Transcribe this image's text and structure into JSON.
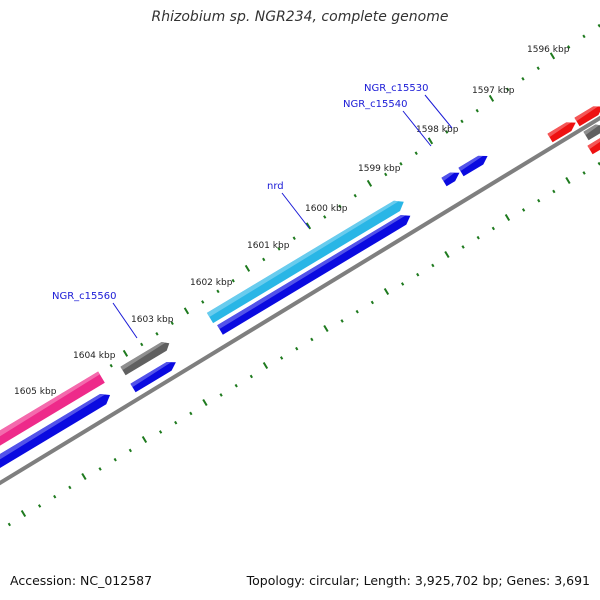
{
  "title": "Rhizobium sp. NGR234, complete genome",
  "accession_text": "Accession: NC_012587",
  "summary_text": "Topology: circular; Length: 3,925,702 bp; Genes: 3,691",
  "colors": {
    "backbone": "#7f7f7f",
    "tick": "#1e7a1e",
    "label": "#1a1ad6",
    "gene_blue": "#0a0ae0",
    "gene_cyan": "#29b6e6",
    "gene_pink": "#ee2a8a",
    "gene_gray": "#606060",
    "gene_red": "#ee1111"
  },
  "ticks": [
    {
      "label": "1596 kbp"
    },
    {
      "label": "1597 kbp"
    },
    {
      "label": "1598 kbp"
    },
    {
      "label": "1599 kbp"
    },
    {
      "label": "1600 kbp"
    },
    {
      "label": "1601 kbp"
    },
    {
      "label": "1602 kbp"
    },
    {
      "label": "1603 kbp"
    },
    {
      "label": "1604 kbp"
    },
    {
      "label": "1605 kbp"
    }
  ],
  "gene_labels": [
    {
      "name": "NGR_c15530"
    },
    {
      "name": "NGR_c15540"
    },
    {
      "name": "nrd"
    },
    {
      "name": "NGR_c15560"
    }
  ],
  "features": [
    {
      "name": "red-gene-1",
      "color": "red"
    },
    {
      "name": "red-gene-2",
      "color": "red"
    },
    {
      "name": "red-gene-3",
      "color": "red"
    },
    {
      "name": "gray-gene-top",
      "color": "gray"
    },
    {
      "name": "blue-gene-1",
      "color": "blue"
    },
    {
      "name": "blue-gene-2",
      "color": "blue"
    },
    {
      "name": "cyan-gene-nrd",
      "color": "cyan"
    },
    {
      "name": "blue-gene-3",
      "color": "blue"
    },
    {
      "name": "gray-gene-c15560",
      "color": "gray"
    },
    {
      "name": "blue-gene-4",
      "color": "blue"
    },
    {
      "name": "pink-gene",
      "color": "pink"
    },
    {
      "name": "blue-gene-5",
      "color": "blue"
    }
  ]
}
